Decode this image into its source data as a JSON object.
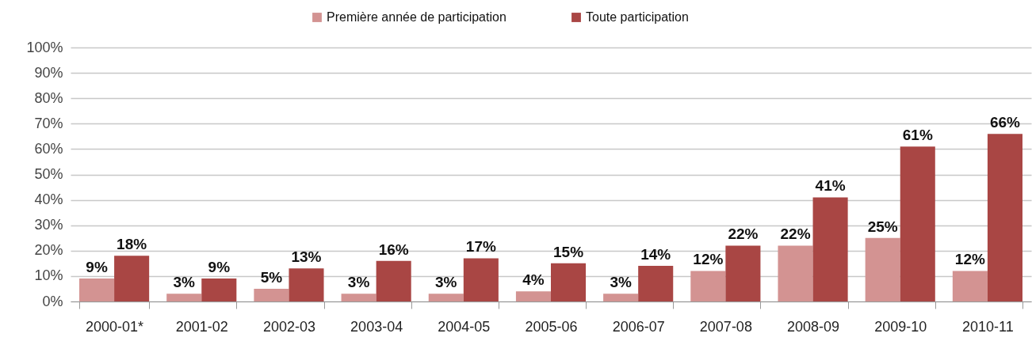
{
  "chart_data": {
    "type": "bar",
    "categories": [
      "2000-01*",
      "2001-02",
      "2002-03",
      "2003-04",
      "2004-05",
      "2005-06",
      "2006-07",
      "2007-08",
      "2008-09",
      "2009-10",
      "2010-11"
    ],
    "series": [
      {
        "name": "Première année de participation",
        "color": "#d39392",
        "values": [
          9,
          3,
          5,
          3,
          3,
          4,
          3,
          12,
          22,
          25,
          12
        ],
        "value_labels": [
          "9%",
          "3%",
          "5%",
          "3%",
          "3%",
          "4%",
          "3%",
          "12%",
          "22%",
          "25%",
          "12%"
        ]
      },
      {
        "name": "Toute participation",
        "color": "#a94644",
        "values": [
          18,
          9,
          13,
          16,
          17,
          15,
          14,
          22,
          41,
          61,
          66
        ],
        "value_labels": [
          "18%",
          "9%",
          "13%",
          "16%",
          "17%",
          "15%",
          "14%",
          "22%",
          "41%",
          "61%",
          "66%"
        ]
      }
    ],
    "ylim": [
      0,
      100
    ],
    "yticks": [
      {
        "value": 0,
        "label": "0%"
      },
      {
        "value": 10,
        "label": "10%"
      },
      {
        "value": 20,
        "label": "20%"
      },
      {
        "value": 30,
        "label": "30%"
      },
      {
        "value": 40,
        "label": "40%"
      },
      {
        "value": 50,
        "label": "50%"
      },
      {
        "value": 60,
        "label": "60%"
      },
      {
        "value": 70,
        "label": "70%"
      },
      {
        "value": 80,
        "label": "80%"
      },
      {
        "value": 90,
        "label": "90%"
      },
      {
        "value": 100,
        "label": "100%"
      }
    ],
    "grid": "y",
    "legend": "top"
  }
}
